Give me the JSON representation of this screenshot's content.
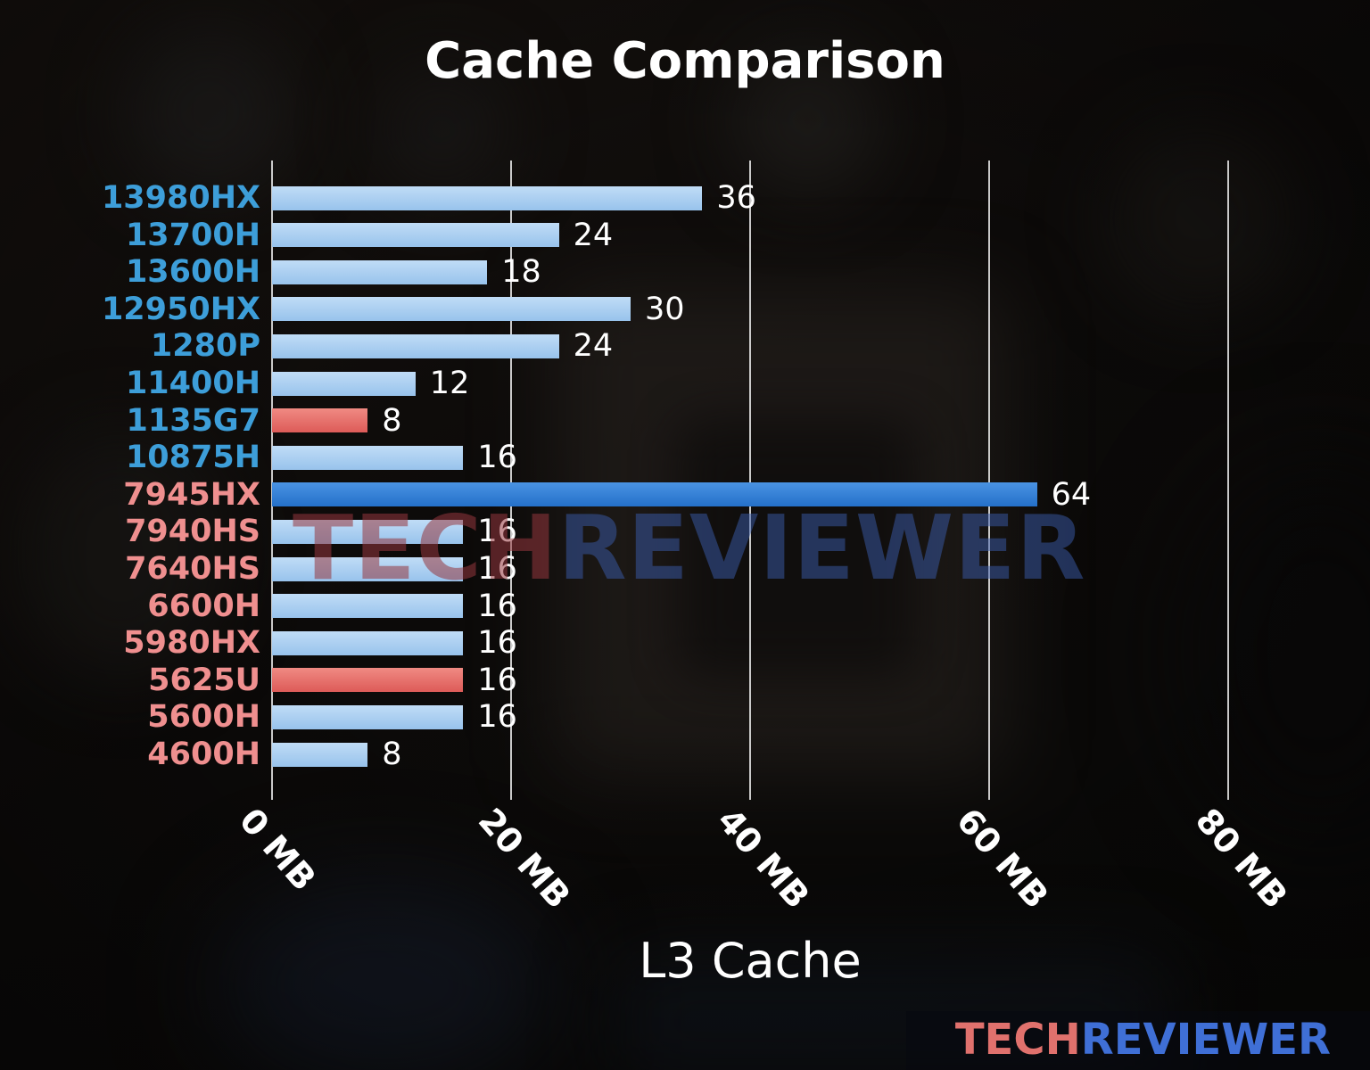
{
  "chart_data": {
    "type": "bar",
    "orientation": "horizontal",
    "title": "Cache Comparison",
    "xlabel": "L3 Cache",
    "ylabel": "",
    "xlim": [
      0,
      80
    ],
    "xticks": [
      0,
      20,
      40,
      60,
      80
    ],
    "xtick_labels": [
      "0 MB",
      "20 MB",
      "40 MB",
      "60 MB",
      "80 MB"
    ],
    "grid": true,
    "legend": "none",
    "categories": [
      "13980HX",
      "13700H",
      "13600H",
      "12950HX",
      "1280P",
      "11400H",
      "1135G7",
      "10875H",
      "7945HX",
      "7940HS",
      "7640HS",
      "6600H",
      "5980HX",
      "5625U",
      "5600H",
      "4600H"
    ],
    "values": [
      36,
      24,
      18,
      30,
      24,
      12,
      8,
      16,
      64,
      16,
      16,
      16,
      16,
      16,
      16,
      8
    ],
    "bar_styles": [
      "light",
      "light",
      "light",
      "light",
      "light",
      "light",
      "red",
      "light",
      "highlight",
      "light",
      "light",
      "light",
      "light",
      "red",
      "light",
      "light"
    ],
    "label_styles": [
      "intel",
      "intel",
      "intel",
      "intel",
      "intel",
      "intel",
      "intel",
      "intel",
      "amd",
      "amd",
      "amd",
      "amd",
      "amd",
      "amd",
      "amd",
      "amd"
    ]
  },
  "styles": {
    "bar_colors": {
      "light": {
        "top": "#c0dcf6",
        "bottom": "#98c3ec"
      },
      "highlight": {
        "top": "#4a93e3",
        "bottom": "#2470c9"
      },
      "red": {
        "top": "#f08a83",
        "bottom": "#dd5b58"
      }
    },
    "label_colors": {
      "intel": "#3d9ed9",
      "amd": "#ef8f8f"
    },
    "value_color": "#ffffff",
    "tick_label_color": "#ffffff",
    "grid_color": "rgba(235,235,235,0.85)",
    "watermark_tech_color": "rgba(150,55,62,0.55)",
    "watermark_reviewer_color": "rgba(58,92,172,0.50)",
    "brand_tech_color": "#e0716d",
    "brand_reviewer_color": "#3f6fd6"
  },
  "watermark": {
    "tech": "TECH",
    "reviewer": "REVIEWER"
  },
  "brand": {
    "tech": "TECH",
    "reviewer": "REVIEWER"
  }
}
